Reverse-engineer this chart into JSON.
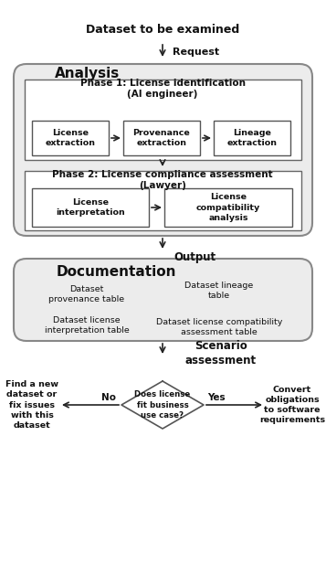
{
  "bg_color": "#ffffff",
  "title_text": "Dataset to be examined",
  "request_label": "Request",
  "analysis_label": "Analysis",
  "phase1_title": "Phase 1: License identification\n(AI engineer)",
  "phase1_boxes": [
    "License\nextraction",
    "Provenance\nextraction",
    "Lineage\nextraction"
  ],
  "phase2_title": "Phase 2: License compliance assessment\n(Lawyer)",
  "phase2_boxes": [
    "License\ninterpretation",
    "License\ncompatibility\nanalysis"
  ],
  "output_label": "Output",
  "documentation_label": "Documentation",
  "doc_col1_row1": "Dataset\nprovenance table",
  "doc_col2_row1": "Dataset lineage\ntable",
  "doc_col1_row2": "Dataset license\ninterpretation table",
  "doc_col2_row2": "Dataset license compatibility\nassessment table",
  "scenario_label": "Scenario\nassessment",
  "diamond_text": "Does license\nfit business\nuse case?",
  "no_label": "No",
  "yes_label": "Yes",
  "left_action": "Find a new\ndataset or\nfix issues\nwith this\ndataset",
  "right_action": "Convert\nobligations\nto software\nrequirements"
}
